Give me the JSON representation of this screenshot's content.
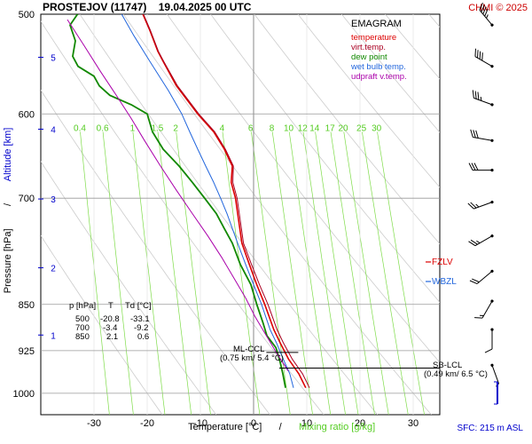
{
  "header": {
    "title": "PROSTEJOV (11747)    19.04.2025 00 UTC",
    "copyright": "CHMI © 2025"
  },
  "legend": {
    "title": "EMAGRAM",
    "items": [
      {
        "label": "temperature",
        "color": "#dd0000"
      },
      {
        "label": "virt.temp.",
        "color": "#aa0022"
      },
      {
        "label": "dew point",
        "color": "#118800"
      },
      {
        "label": "wet bulb temp.",
        "color": "#2266dd"
      },
      {
        "label": "udpraft v.temp.",
        "color": "#aa00aa"
      }
    ]
  },
  "axes": {
    "ylabel_pressure": "Pressure [hPa]",
    "ylabel_separator": "/",
    "ylabel_altitude": "Altitude [km]",
    "xlabel_temperature": "Temperature [°C]",
    "xlabel_separator": "/",
    "xlabel_mixing": "Mixing ratio [g/kg]",
    "surface_note": "SFC: 215 m ASL"
  },
  "table": {
    "header": [
      "p [hPa]",
      "T",
      "Td [°C]"
    ],
    "rows": [
      [
        "500",
        "-20.8",
        "-33.1"
      ],
      [
        "700",
        "-3.4",
        "-9.2"
      ],
      [
        "850",
        "2.1",
        "0.6"
      ]
    ]
  },
  "annotations": {
    "ml_ccl": {
      "label": "ML-CCL",
      "detail": "(0.75 km/ 5.4 °C)",
      "pressure": 928,
      "temp": 5.4
    },
    "sb_lcl": {
      "label": "SB-LCL",
      "detail": "(0.49 km/ 6.5 °C)",
      "pressure": 955,
      "temp": 6.5
    },
    "fzlv": {
      "label": "FZLV",
      "pressure": 790
    },
    "wbzl": {
      "label": "WBZL",
      "pressure": 815
    }
  },
  "chart_data": {
    "type": "line",
    "xlim": [
      -40,
      35
    ],
    "ylim": [
      1040,
      500
    ],
    "y_scale": "log",
    "x_ticks": [
      -30,
      -20,
      -10,
      0,
      10,
      20,
      30
    ],
    "x_tick_labels": [
      "-30",
      "-20",
      "-10",
      "0",
      "10",
      "20",
      "30"
    ],
    "pressure_ticks": [
      500,
      600,
      700,
      850,
      925,
      1000
    ],
    "pressure_tick_labels": [
      "500",
      "600",
      "700",
      "850",
      "925",
      "1000"
    ],
    "altitude_ticks": [
      {
        "km": "1",
        "p": 899
      },
      {
        "km": "2",
        "p": 795
      },
      {
        "km": "3",
        "p": 701
      },
      {
        "km": "4",
        "p": 617
      },
      {
        "km": "5",
        "p": 541
      }
    ],
    "mixing_ratio_lines": [
      0.4,
      0.6,
      1,
      1.5,
      2,
      4,
      6,
      8,
      10,
      12,
      14,
      17,
      20,
      25,
      30
    ],
    "mixing_ratio_labels": [
      "0.4",
      "0.6",
      "1",
      "1.5",
      "2",
      "4",
      "6",
      "8",
      "10",
      "12",
      "14",
      "17",
      "20",
      "25",
      "30"
    ],
    "mixing_label_pressure": 615,
    "series": [
      {
        "key": "temperature",
        "color": "#dd0000",
        "width": 1.6,
        "points": [
          [
            9.8,
            990
          ],
          [
            8.5,
            965
          ],
          [
            6.6,
            940
          ],
          [
            5.0,
            912
          ],
          [
            3.8,
            890
          ],
          [
            2.1,
            850
          ],
          [
            0.6,
            820
          ],
          [
            -0.8,
            790
          ],
          [
            -2.2,
            760
          ],
          [
            -3.4,
            700
          ],
          [
            -4.2,
            680
          ],
          [
            -4.0,
            660
          ],
          [
            -5.5,
            640
          ],
          [
            -7.5,
            620
          ],
          [
            -10.5,
            600
          ],
          [
            -14.5,
            570
          ],
          [
            -17.0,
            545
          ],
          [
            -18.0,
            535
          ],
          [
            -19.5,
            515
          ],
          [
            -20.8,
            500
          ]
        ]
      },
      {
        "key": "virtual_temperature",
        "color": "#aa0022",
        "width": 1.0,
        "points": [
          [
            10.5,
            990
          ],
          [
            9.2,
            965
          ],
          [
            7.3,
            940
          ],
          [
            5.6,
            912
          ],
          [
            4.4,
            890
          ],
          [
            2.7,
            850
          ],
          [
            1.1,
            820
          ],
          [
            -0.4,
            790
          ],
          [
            -1.9,
            760
          ],
          [
            -3.1,
            700
          ],
          [
            -3.9,
            680
          ],
          [
            -3.8,
            660
          ],
          [
            -5.3,
            640
          ],
          [
            -7.3,
            620
          ],
          [
            -10.3,
            600
          ],
          [
            -14.3,
            570
          ],
          [
            -16.9,
            545
          ],
          [
            -17.9,
            535
          ],
          [
            -19.4,
            515
          ],
          [
            -20.7,
            500
          ]
        ]
      },
      {
        "key": "dew_point",
        "color": "#118800",
        "width": 1.8,
        "points": [
          [
            6.0,
            990
          ],
          [
            5.5,
            965
          ],
          [
            5.0,
            945
          ],
          [
            4.2,
            920
          ],
          [
            2.5,
            900
          ],
          [
            1.8,
            880
          ],
          [
            0.6,
            850
          ],
          [
            -0.5,
            820
          ],
          [
            -2.5,
            790
          ],
          [
            -4.0,
            760
          ],
          [
            -5.5,
            740
          ],
          [
            -7.0,
            720
          ],
          [
            -9.2,
            700
          ],
          [
            -11.5,
            680
          ],
          [
            -14.0,
            660
          ],
          [
            -17.0,
            640
          ],
          [
            -19.0,
            620
          ],
          [
            -20.0,
            600
          ],
          [
            -23.0,
            590
          ],
          [
            -27.0,
            580
          ],
          [
            -29.0,
            570
          ],
          [
            -30.0,
            560
          ],
          [
            -33.0,
            550
          ],
          [
            -34.0,
            540
          ],
          [
            -33.5,
            525
          ],
          [
            -34.5,
            510
          ],
          [
            -33.1,
            500
          ]
        ]
      },
      {
        "key": "wet_bulb",
        "color": "#2266dd",
        "width": 1.0,
        "points": [
          [
            7.5,
            990
          ],
          [
            6.8,
            965
          ],
          [
            5.6,
            940
          ],
          [
            4.3,
            912
          ],
          [
            3.1,
            890
          ],
          [
            1.5,
            850
          ],
          [
            0.0,
            820
          ],
          [
            -1.5,
            790
          ],
          [
            -3.0,
            760
          ],
          [
            -5.0,
            720
          ],
          [
            -6.2,
            700
          ],
          [
            -7.5,
            680
          ],
          [
            -9.0,
            660
          ],
          [
            -10.5,
            640
          ],
          [
            -12.0,
            620
          ],
          [
            -13.5,
            600
          ],
          [
            -16.0,
            575
          ],
          [
            -19.5,
            545
          ],
          [
            -22.5,
            520
          ],
          [
            -24.8,
            500
          ]
        ]
      },
      {
        "key": "updraft_virtual_temperature",
        "color": "#aa00aa",
        "width": 1.0,
        "points": [
          [
            6.5,
            960
          ],
          [
            4.4,
            930
          ],
          [
            2.4,
            900
          ],
          [
            0.2,
            868
          ],
          [
            -1.5,
            840
          ],
          [
            -3.7,
            810
          ],
          [
            -6.0,
            780
          ],
          [
            -8.6,
            750
          ],
          [
            -11.5,
            720
          ],
          [
            -14.5,
            690
          ],
          [
            -17.5,
            660
          ],
          [
            -20.5,
            630
          ],
          [
            -23.0,
            605
          ],
          [
            -25.8,
            580
          ],
          [
            -28.8,
            555
          ],
          [
            -31.8,
            530
          ],
          [
            -35.0,
            505
          ]
        ]
      }
    ],
    "wind_barbs": [
      {
        "p": 510,
        "dir": 320,
        "speed_kt": 45
      },
      {
        "p": 550,
        "dir": 300,
        "speed_kt": 40
      },
      {
        "p": 590,
        "dir": 290,
        "speed_kt": 35
      },
      {
        "p": 630,
        "dir": 280,
        "speed_kt": 30
      },
      {
        "p": 665,
        "dir": 270,
        "speed_kt": 30
      },
      {
        "p": 705,
        "dir": 250,
        "speed_kt": 25
      },
      {
        "p": 750,
        "dir": 240,
        "speed_kt": 25
      },
      {
        "p": 800,
        "dir": 230,
        "speed_kt": 20
      },
      {
        "p": 845,
        "dir": 210,
        "speed_kt": 15
      },
      {
        "p": 890,
        "dir": 180,
        "speed_kt": 10
      },
      {
        "p": 950,
        "dir": 160,
        "speed_kt": 5
      }
    ]
  }
}
